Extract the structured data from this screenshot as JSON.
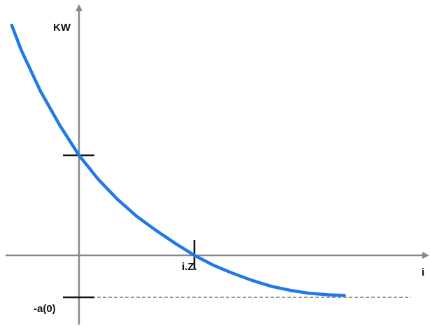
{
  "chart_data": {
    "type": "line",
    "ylabel": "KW",
    "xlabel": "i",
    "curve": [
      {
        "x": -0.35,
        "y": 2.3
      },
      {
        "x": -0.3,
        "y": 2.05
      },
      {
        "x": -0.2,
        "y": 1.64
      },
      {
        "x": -0.1,
        "y": 1.3
      },
      {
        "x": 0.0,
        "y": 1.0
      },
      {
        "x": 0.1,
        "y": 0.76
      },
      {
        "x": 0.2,
        "y": 0.56
      },
      {
        "x": 0.3,
        "y": 0.39
      },
      {
        "x": 0.4,
        "y": 0.25
      },
      {
        "x": 0.5,
        "y": 0.12
      },
      {
        "x": 0.6,
        "y": 0.0
      },
      {
        "x": 0.7,
        "y": -0.1
      },
      {
        "x": 0.8,
        "y": -0.18
      },
      {
        "x": 0.9,
        "y": -0.25
      },
      {
        "x": 1.0,
        "y": -0.31
      },
      {
        "x": 1.1,
        "y": -0.35
      },
      {
        "x": 1.2,
        "y": -0.38
      },
      {
        "x": 1.3,
        "y": -0.395
      },
      {
        "x": 1.38,
        "y": -0.4
      }
    ],
    "markers": {
      "y_intercept": 1.0,
      "iz": {
        "x": 0.6,
        "label": "i.Z."
      },
      "asymptote": {
        "y": -0.42,
        "label": "-a(0)"
      }
    },
    "xlim": [
      -0.4,
      1.85
    ],
    "ylim": [
      -0.55,
      2.65
    ],
    "colors": {
      "curve": "#1f7ae8",
      "axis": "#888888",
      "asymptote": "#999999",
      "tick": "#111111"
    }
  }
}
